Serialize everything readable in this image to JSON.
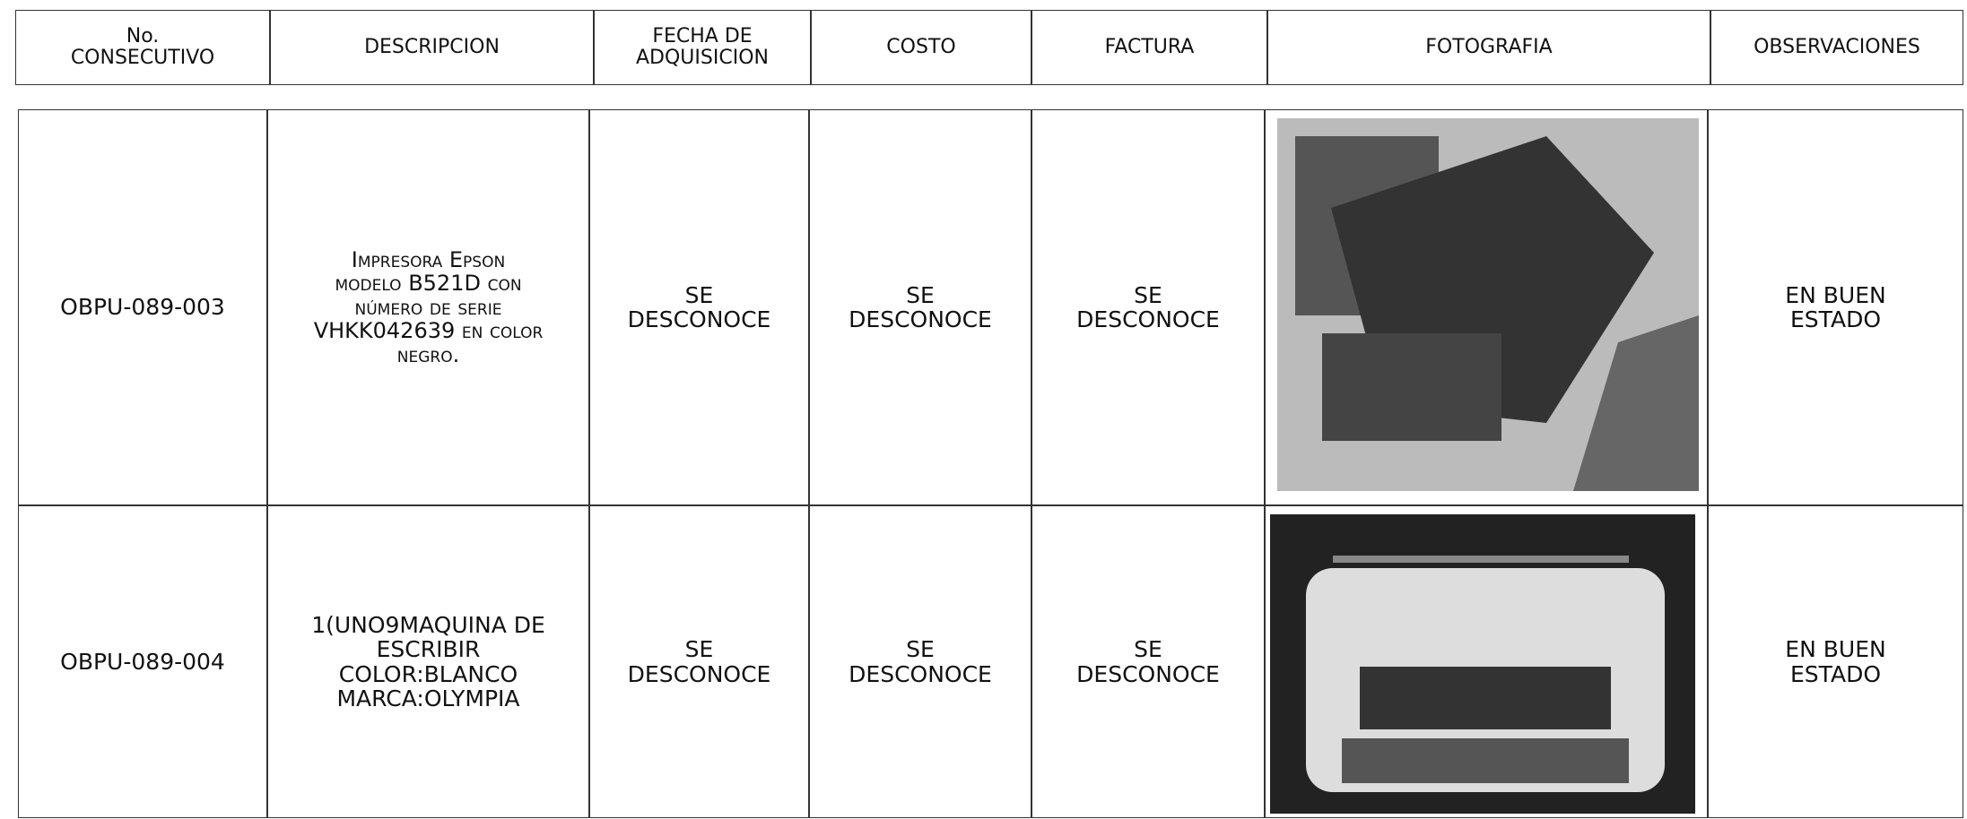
{
  "header": {
    "columns": [
      "No.\nCONSECUTIVO",
      "DESCRIPCION",
      "FECHA DE\nADQUISICION",
      "COSTO",
      "FACTURA",
      "FOTOGRAFIA",
      "OBSERVACIONES"
    ]
  },
  "table": {
    "rows": [
      [
        "OBPU-089-003",
        "Impresora Epson\nmodelo B521D con\nnúmero de serie\nVHKK042639 en color\nnegro.",
        "SE\nDESCONOCE",
        "SE\nDESCONOCE",
        "SE\nDESCONOCE",
        "EN BUEN\nESTADO"
      ],
      [
        "OBPU-089-004",
        "1(UNO9MAQUINA DE\nESCRIBIR\nCOLOR:BLANCO\nMARCA:OLYMPIA",
        "SE\nDESCONOCE",
        "SE\nDESCONOCE",
        "SE\nDESCONOCE",
        "EN BUEN\nESTADO"
      ]
    ]
  }
}
